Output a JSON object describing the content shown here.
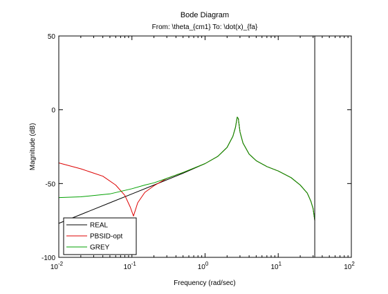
{
  "figure": {
    "background": "#ffffff"
  },
  "chart_data": {
    "type": "line",
    "title": "Bode Diagram",
    "subtitle": "From: \\theta_{cm1}  To: \\dot(x)_{fa}",
    "xlabel": "Frequency  (rad/sec)",
    "ylabel": "Magnitude (dB)",
    "xscale": "log",
    "xlim": [
      0.01,
      100
    ],
    "ylim": [
      -100,
      50
    ],
    "x_ticks": [
      {
        "base": "10",
        "exp": "-2",
        "value": 0.01
      },
      {
        "base": "10",
        "exp": "-1",
        "value": 0.1
      },
      {
        "base": "10",
        "exp": "0",
        "value": 1
      },
      {
        "base": "10",
        "exp": "1",
        "value": 10
      },
      {
        "base": "10",
        "exp": "2",
        "value": 100
      }
    ],
    "y_ticks": [
      "50",
      "0",
      "-50",
      "-100"
    ],
    "grid": false,
    "legend_position": "bottom-left",
    "vertical_line_x": 31.6,
    "series": [
      {
        "name": "REAL",
        "color": "#000000",
        "x": [
          0.01,
          0.02,
          0.05,
          0.1,
          0.2,
          0.5,
          1,
          1.5,
          2,
          2.4,
          2.6,
          2.75,
          2.85,
          3.0,
          3.3,
          4,
          5,
          7,
          10,
          15,
          20,
          25,
          28,
          30,
          31.6
        ],
        "y": [
          -77,
          -71,
          -63,
          -57,
          -51,
          -43,
          -36.5,
          -31.5,
          -25.5,
          -18,
          -12,
          -5,
          -6,
          -15,
          -22.5,
          -30,
          -34.5,
          -38.5,
          -41.5,
          -46,
          -51,
          -56.5,
          -62,
          -67,
          -75
        ]
      },
      {
        "name": "PBSID-opt",
        "color": "#dd0000",
        "x": [
          0.01,
          0.02,
          0.04,
          0.06,
          0.08,
          0.095,
          0.105,
          0.12,
          0.15,
          0.2,
          0.3,
          0.5,
          1,
          1.5,
          2,
          2.4,
          2.6,
          2.75,
          2.85,
          3.0,
          3.3,
          4,
          5,
          7,
          10,
          15,
          20,
          25,
          28,
          30,
          31.6
        ],
        "y": [
          -36,
          -40,
          -45,
          -51,
          -58,
          -66,
          -72,
          -63,
          -56,
          -51.5,
          -46.5,
          -42.5,
          -36.5,
          -31.5,
          -25.5,
          -18,
          -12,
          -5,
          -6,
          -15,
          -22.5,
          -30,
          -34.5,
          -38.5,
          -41.5,
          -46,
          -51,
          -56.5,
          -62,
          -67,
          -75
        ]
      },
      {
        "name": "GREY",
        "color": "#00a000",
        "x": [
          0.01,
          0.02,
          0.05,
          0.1,
          0.15,
          0.2,
          0.3,
          0.5,
          1,
          1.5,
          2,
          2.4,
          2.6,
          2.75,
          2.85,
          3.0,
          3.3,
          4,
          5,
          7,
          10,
          15,
          20,
          25,
          28,
          30,
          31.6
        ],
        "y": [
          -59.5,
          -59,
          -57,
          -53.5,
          -51,
          -49.5,
          -46.5,
          -42.5,
          -36.5,
          -31.5,
          -25.5,
          -18,
          -12,
          -5,
          -6,
          -15,
          -22.5,
          -30,
          -34.5,
          -38.5,
          -41.5,
          -46,
          -51,
          -56.5,
          -62,
          -67,
          -75
        ]
      }
    ]
  }
}
